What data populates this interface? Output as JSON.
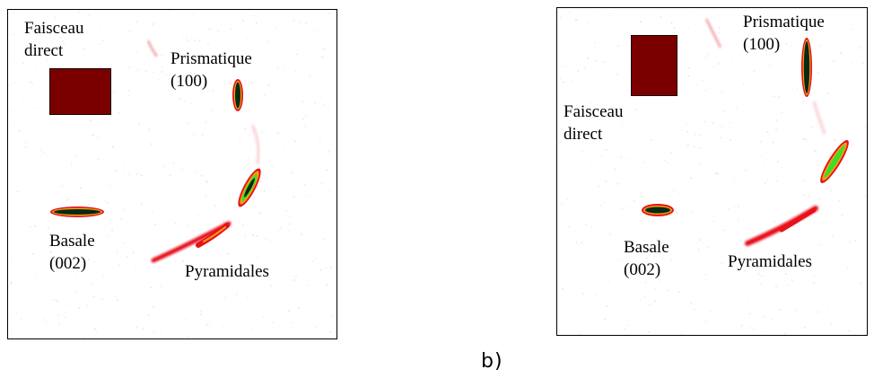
{
  "colors": {
    "background": "#ffffff",
    "direct_beam": "#7a0000",
    "intensity_low": "#e8101a",
    "intensity_mid": "#f0a010",
    "intensity_high": "#3fdc2a",
    "intensity_peak": "#062a12"
  },
  "panels": [
    {
      "faisceau": [
        "Faisceau",
        "direct"
      ],
      "prismatique": [
        "Prismatique",
        "(100)"
      ],
      "basale": [
        "Basale",
        "(002)"
      ],
      "pyramidales": "Pyramidales"
    },
    {
      "faisceau": [
        "Faisceau",
        "direct"
      ],
      "prismatique": [
        "Prismatique",
        "(100)"
      ],
      "basale": [
        "Basale",
        "(002)"
      ],
      "pyramidales": "Pyramidales"
    }
  ],
  "caption": "b)"
}
